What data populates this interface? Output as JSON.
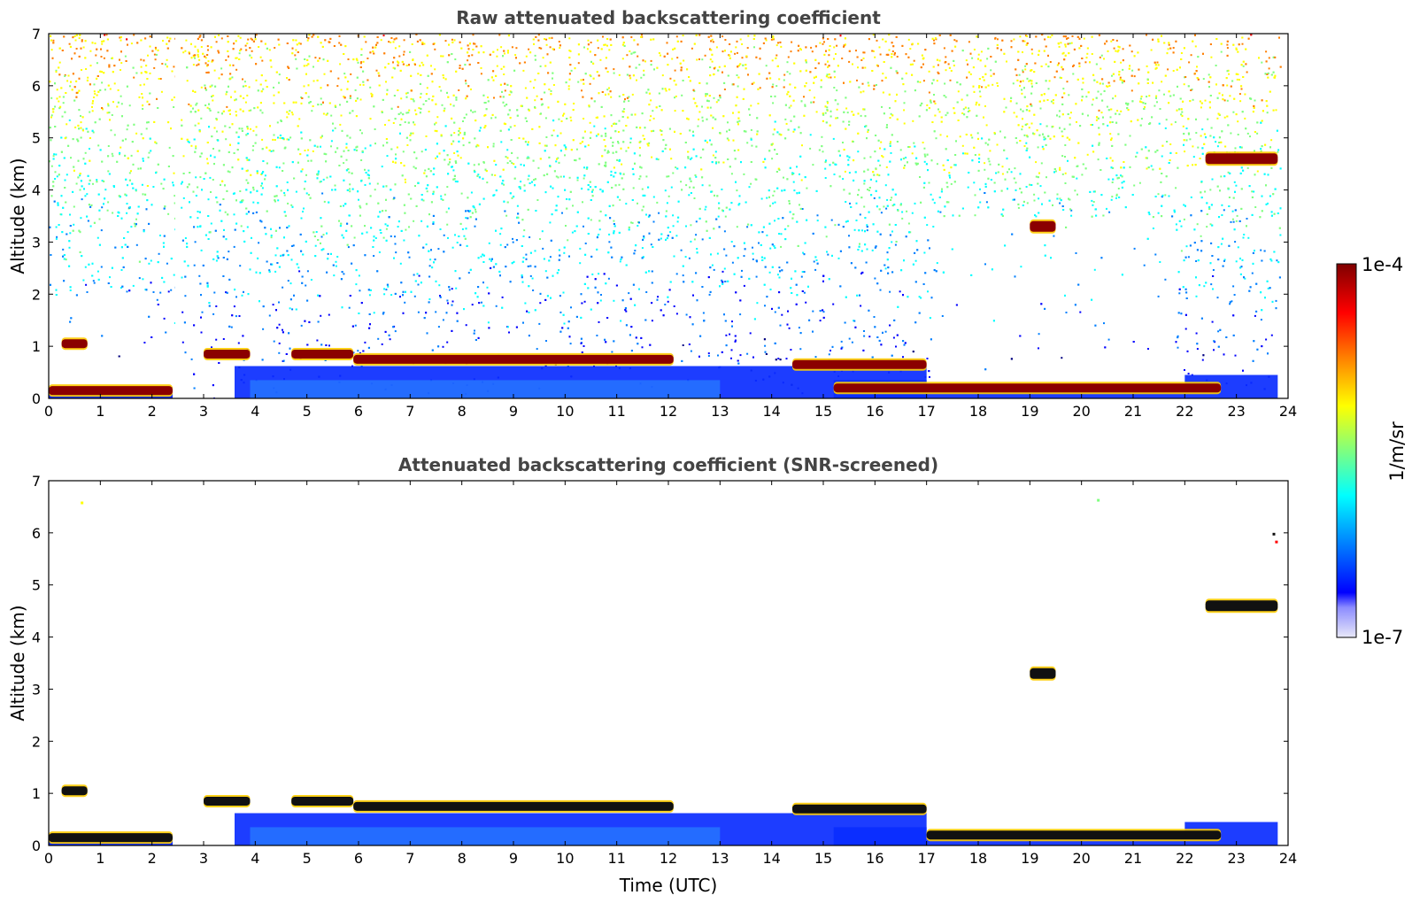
{
  "colors": {
    "jet": [
      "#00007f",
      "#0000ff",
      "#007fff",
      "#00ffff",
      "#7fff7f",
      "#ffff00",
      "#ff7f00",
      "#ff0000",
      "#7f0000"
    ],
    "low_end": [
      "#e8e8f8",
      "#8c8cff"
    ]
  },
  "colorbar": {
    "label": "1/m/sr",
    "max_label": "1e-4",
    "min_label": "1e-7"
  },
  "chart_data": [
    {
      "type": "heatmap",
      "title": "Raw attenuated backscattering coefficient",
      "xlabel": "",
      "ylabel": "Altitude (km)",
      "xlim": [
        0,
        24
      ],
      "ylim": [
        0,
        7
      ],
      "xticks": [
        "0",
        "1",
        "2",
        "3",
        "4",
        "5",
        "6",
        "7",
        "8",
        "9",
        "10",
        "11",
        "12",
        "13",
        "14",
        "15",
        "16",
        "17",
        "18",
        "19",
        "20",
        "21",
        "22",
        "23",
        "24"
      ],
      "yticks": [
        "0",
        "1",
        "2",
        "3",
        "4",
        "5",
        "6",
        "7"
      ],
      "colorscale": "jet (log)",
      "data_gap_hours": [
        2.45,
        2.55
      ],
      "cloud_layers": [
        {
          "from_h": 0.0,
          "to_h": 2.4,
          "altitude_km": 0.15
        },
        {
          "from_h": 0.25,
          "to_h": 0.75,
          "altitude_km": 1.05
        },
        {
          "from_h": 3.0,
          "to_h": 3.9,
          "altitude_km": 0.85
        },
        {
          "from_h": 4.7,
          "to_h": 5.9,
          "altitude_km": 0.85
        },
        {
          "from_h": 5.9,
          "to_h": 12.1,
          "altitude_km": 0.75
        },
        {
          "from_h": 14.4,
          "to_h": 17.0,
          "altitude_km": 0.65
        },
        {
          "from_h": 15.2,
          "to_h": 22.7,
          "altitude_km": 0.2
        },
        {
          "from_h": 22.4,
          "to_h": 23.8,
          "altitude_km": 4.6
        },
        {
          "from_h": 19.0,
          "to_h": 19.5,
          "altitude_km": 3.3
        }
      ]
    },
    {
      "type": "heatmap",
      "title": "Attenuated backscattering coefficient (SNR-screened)",
      "xlabel": "Time (UTC)",
      "ylabel": "Altitude (km)",
      "xlim": [
        0,
        24
      ],
      "ylim": [
        0,
        7
      ],
      "xticks": [
        "0",
        "1",
        "2",
        "3",
        "4",
        "5",
        "6",
        "7",
        "8",
        "9",
        "10",
        "11",
        "12",
        "13",
        "14",
        "15",
        "16",
        "17",
        "18",
        "19",
        "20",
        "21",
        "22",
        "23",
        "24"
      ],
      "yticks": [
        "0",
        "1",
        "2",
        "3",
        "4",
        "5",
        "6",
        "7"
      ],
      "colorscale": "jet (log)",
      "cloud_layers": [
        {
          "from_h": 0.0,
          "to_h": 2.4,
          "altitude_km": 0.15
        },
        {
          "from_h": 0.25,
          "to_h": 0.75,
          "altitude_km": 1.05
        },
        {
          "from_h": 3.0,
          "to_h": 3.9,
          "altitude_km": 0.85
        },
        {
          "from_h": 4.7,
          "to_h": 5.9,
          "altitude_km": 0.85
        },
        {
          "from_h": 5.9,
          "to_h": 12.1,
          "altitude_km": 0.75
        },
        {
          "from_h": 14.4,
          "to_h": 17.0,
          "altitude_km": 0.7
        },
        {
          "from_h": 17.0,
          "to_h": 22.7,
          "altitude_km": 0.2
        },
        {
          "from_h": 22.4,
          "to_h": 23.8,
          "altitude_km": 4.6
        },
        {
          "from_h": 19.0,
          "to_h": 19.5,
          "altitude_km": 3.3
        }
      ]
    }
  ]
}
